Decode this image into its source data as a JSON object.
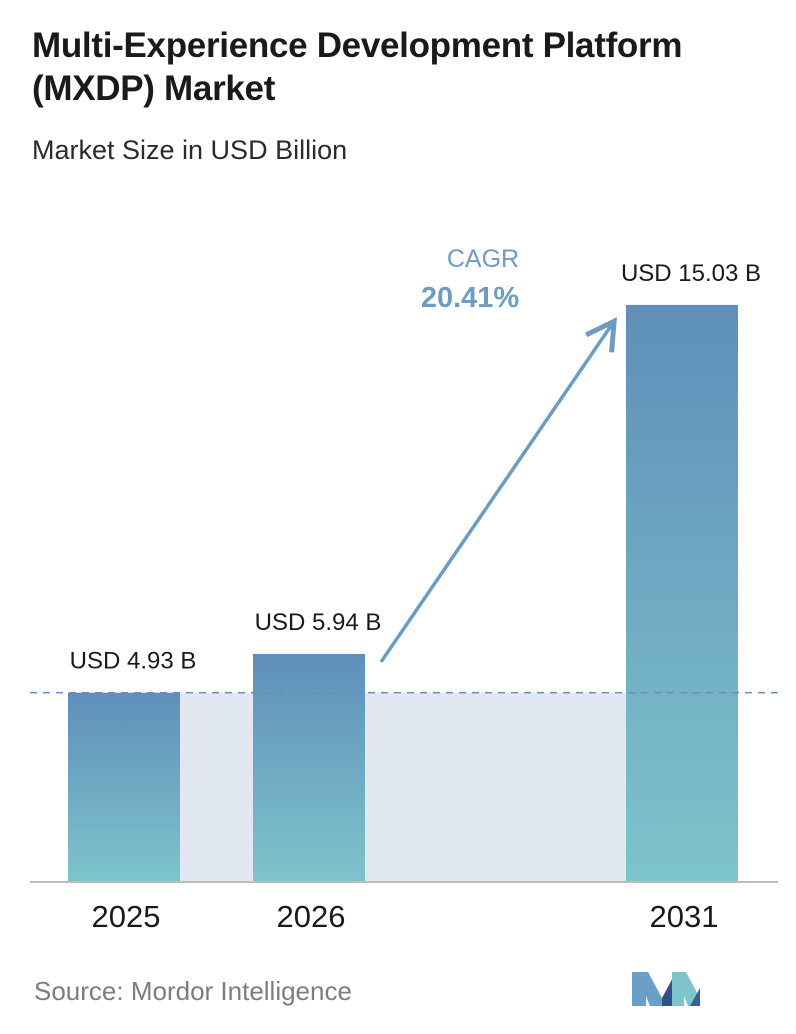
{
  "header": {
    "title": "Multi-Experience Development Platform (MXDP) Market",
    "subtitle": "Market Size in USD Billion"
  },
  "chart_data": {
    "type": "bar",
    "title": "Multi-Experience Development Platform (MXDP) Market",
    "subtitle": "Market Size in USD Billion",
    "categories": [
      "2025",
      "2026",
      "2031"
    ],
    "values": [
      4.93,
      5.94,
      15.03
    ],
    "data_labels": [
      "USD 4.93 B",
      "USD 5.94 B",
      "USD 15.03 B"
    ],
    "xlabel": "",
    "ylabel": "",
    "ylim": [
      0,
      16.2
    ],
    "grid": false,
    "reference_line": "dashed line at the 2025 value",
    "annotation": {
      "label": "CAGR",
      "value": "20.41%"
    }
  },
  "footer": {
    "source": "Source: Mordor Intelligence",
    "logo_name": "mordor-intelligence-logo"
  },
  "colors": {
    "bar_top": "#5f8fba",
    "bar_bottom": "#7ec4cb",
    "band_fill": "#e2e8f1",
    "accent": "#6d9cc3",
    "text_dark": "#1a1a1a",
    "text_muted": "#7d7d7d"
  }
}
